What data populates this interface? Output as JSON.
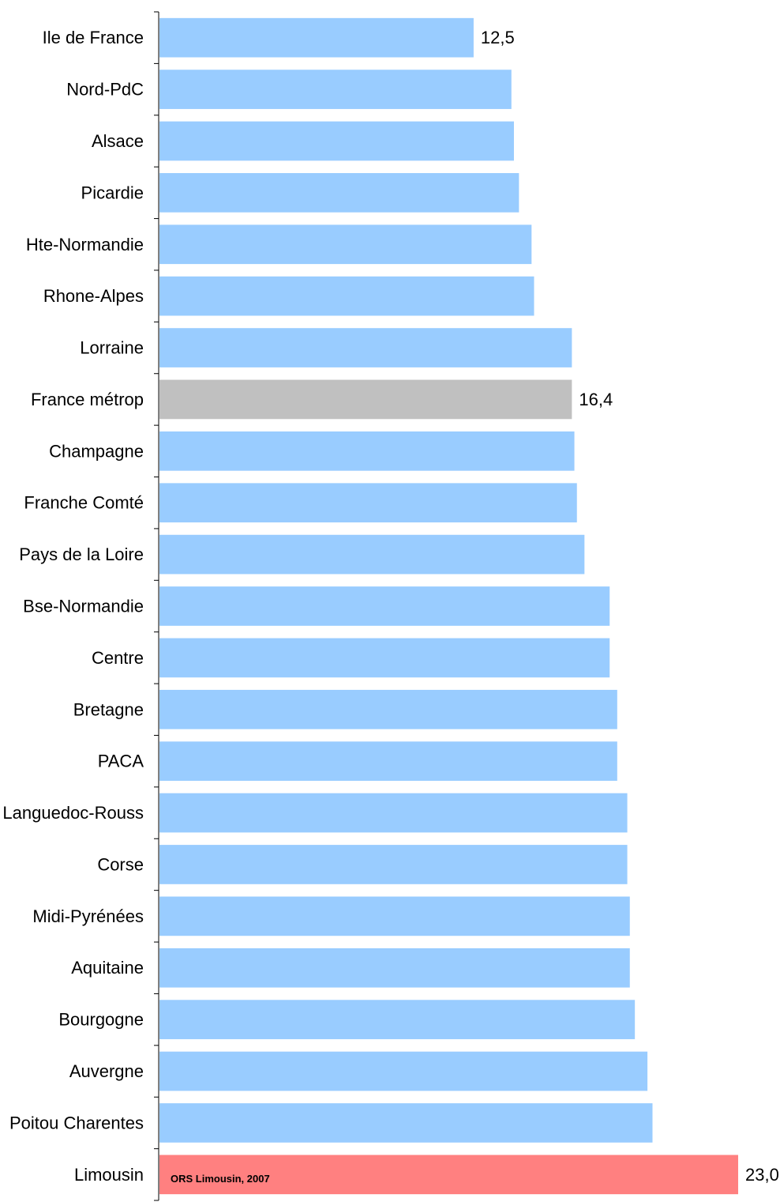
{
  "chart_data": {
    "type": "bar",
    "orientation": "horizontal",
    "categories": [
      "Ile de France",
      "Nord-PdC",
      "Alsace",
      "Picardie",
      "Hte-Normandie",
      "Rhone-Alpes",
      "Lorraine",
      "France métrop",
      "Champagne",
      "Franche Comté",
      "Pays de la Loire",
      "Bse-Normandie",
      "Centre",
      "Bretagne",
      "PACA",
      "Languedoc-Rouss",
      "Corse",
      "Midi-Pyrénées",
      "Aquitaine",
      "Bourgogne",
      "Auvergne",
      "Poitou Charentes",
      "Limousin"
    ],
    "values": [
      12.5,
      14.0,
      14.1,
      14.3,
      14.8,
      14.9,
      16.4,
      16.4,
      16.5,
      16.6,
      16.9,
      17.9,
      17.9,
      18.2,
      18.2,
      18.6,
      18.6,
      18.7,
      18.7,
      18.9,
      19.4,
      19.6,
      23.0
    ],
    "data_labels": [
      "12,5",
      "",
      "",
      "",
      "",
      "",
      "",
      "16,4",
      "",
      "",
      "",
      "",
      "",
      "",
      "",
      "",
      "",
      "",
      "",
      "",
      "",
      "",
      "23,0"
    ],
    "colors": {
      "default": "#99ccff",
      "France métrop": "#c0c0c0",
      "Limousin": "#ff8080"
    },
    "xlim": [
      0,
      23.0
    ],
    "grid": false,
    "annotation": "ORS Limousin, 2007"
  }
}
